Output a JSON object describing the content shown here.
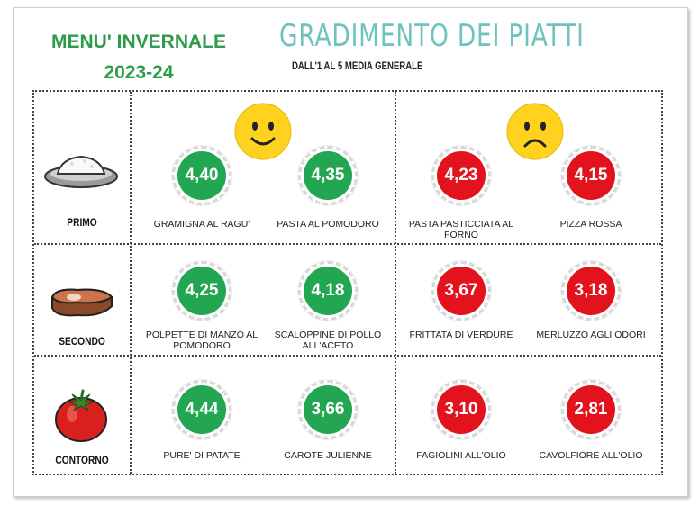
{
  "header": {
    "menu_line1": "MENU' INVERNALE",
    "menu_line2": "2023-24",
    "title": "GRADIMENTO DEI PIATTI",
    "subtitle": "DALL'1 AL 5 MEDIA GENERALE"
  },
  "colors": {
    "liked": "#22a651",
    "disliked": "#e3131d",
    "title": "#6fc3be",
    "menu": "#2e9c4a"
  },
  "faces": {
    "liked": "smiley-face-icon",
    "disliked": "frowning-face-icon"
  },
  "rows": [
    {
      "category": "PRIMO",
      "icon": "rice-plate-icon",
      "dishes": [
        {
          "score": "4,40",
          "name": "GRAMIGNA AL RAGU'",
          "tone": "green"
        },
        {
          "score": "4,35",
          "name": "PASTA AL POMODORO",
          "tone": "green"
        },
        {
          "score": "4,23",
          "name": "PASTA PASTICCIATA AL FORNO",
          "tone": "red"
        },
        {
          "score": "4,15",
          "name": "PIZZA ROSSA",
          "tone": "red"
        }
      ]
    },
    {
      "category": "SECONDO",
      "icon": "meat-steak-icon",
      "dishes": [
        {
          "score": "4,25",
          "name": "POLPETTE DI MANZO AL POMODORO",
          "tone": "green"
        },
        {
          "score": "4,18",
          "name": "SCALOPPINE DI POLLO ALL'ACETO",
          "tone": "green"
        },
        {
          "score": "3,67",
          "name": "FRITTATA DI VERDURE",
          "tone": "red"
        },
        {
          "score": "3,18",
          "name": "MERLUZZO AGLI ODORI",
          "tone": "red"
        }
      ]
    },
    {
      "category": "CONTORNO",
      "icon": "tomato-icon",
      "dishes": [
        {
          "score": "4,44",
          "name": "PURE' DI PATATE",
          "tone": "green"
        },
        {
          "score": "3,66",
          "name": "CAROTE JULIENNE",
          "tone": "green"
        },
        {
          "score": "3,10",
          "name": "FAGIOLINI ALL'OLIO",
          "tone": "red"
        },
        {
          "score": "2,81",
          "name": "CAVOLFIORE ALL'OLIO",
          "tone": "red"
        }
      ]
    }
  ]
}
